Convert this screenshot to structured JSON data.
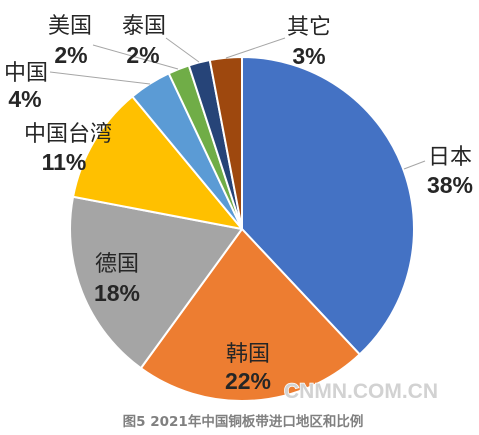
{
  "chart_data": {
    "type": "pie",
    "caption": "图5 2021年中国铜板带进口地区和比例",
    "unit": "%",
    "slices": [
      {
        "label": "日本",
        "value": 38,
        "color": "#4472C4"
      },
      {
        "label": "韩国",
        "value": 22,
        "color": "#ED7D31"
      },
      {
        "label": "德国",
        "value": 18,
        "color": "#A5A5A5"
      },
      {
        "label": "中国台湾",
        "value": 11,
        "color": "#FFC000"
      },
      {
        "label": "中国",
        "value": 4,
        "color": "#5B9BD5"
      },
      {
        "label": "美国",
        "value": 2,
        "color": "#70AD47"
      },
      {
        "label": "泰国",
        "value": 2,
        "color": "#264478"
      },
      {
        "label": "其它",
        "value": 3,
        "color": "#9E480E"
      }
    ]
  },
  "watermark": "CNMN.COM.CN"
}
